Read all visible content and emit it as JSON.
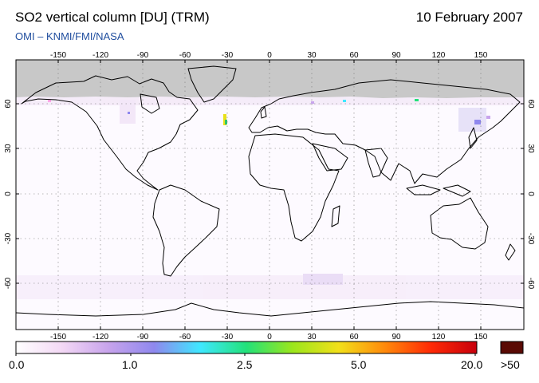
{
  "header": {
    "title": "SO2 vertical column [DU] (TRM)",
    "date": "10 February 2007",
    "credit": "OMI  –  KNMI/FMI/NASA"
  },
  "map": {
    "projection": "equirectangular",
    "lon_ticks": [
      "-150",
      "-120",
      "-90",
      "-60",
      "-30",
      "0",
      "30",
      "60",
      "90",
      "120",
      "150"
    ],
    "lat_ticks": [
      "60",
      "30",
      "0",
      "-30",
      "-60"
    ],
    "lon_range": [
      -180,
      180
    ],
    "lat_range": [
      -90,
      90
    ],
    "gridlines": "dotted",
    "no_data_region": "north of ~65°N (grey)"
  },
  "colorbar": {
    "labels": [
      "0.0",
      "1.0",
      "2.5",
      "5.0",
      "20.0"
    ],
    "overflow_label": ">50",
    "colors": [
      "#ffffff",
      "#f3d8f5",
      "#c8a4ec",
      "#8f88ee",
      "#3fe8ff",
      "#22e27a",
      "#9be61c",
      "#f2e01a",
      "#ff8a0b",
      "#ff2a06",
      "#c8000c"
    ],
    "overflow_color": "#5a0a04"
  },
  "colors": {
    "nodata": "#c8c8c8",
    "coast": "#000000",
    "credit_text": "#1f4d9e"
  }
}
